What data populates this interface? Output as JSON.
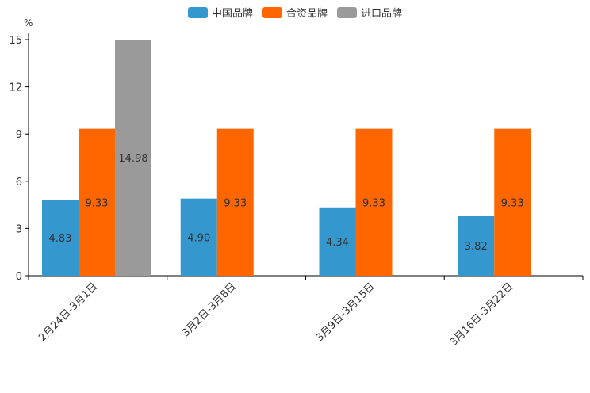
{
  "chart_data": {
    "type": "bar",
    "title": "",
    "xlabel": "",
    "ylabel": "%",
    "ylim": [
      0,
      15
    ],
    "yticks": [
      0,
      3,
      6,
      9,
      12,
      15
    ],
    "categories": [
      "2月24日-3月1日",
      "3月2日-3月8日",
      "3月9日-3月15日",
      "3月16日-3月22日"
    ],
    "series": [
      {
        "name": "中国品牌",
        "color": "#3498cf",
        "values": [
          4.83,
          4.9,
          4.34,
          3.82
        ],
        "labels": [
          "4.83",
          "4.90",
          "4.34",
          "3.82"
        ]
      },
      {
        "name": "合资品牌",
        "color": "#ff6600",
        "values": [
          9.33,
          9.33,
          9.33,
          9.33
        ],
        "labels": [
          "9.33",
          "9.33",
          "9.33",
          "9.33"
        ]
      },
      {
        "name": "进口品牌",
        "color": "#9a9a9a",
        "values": [
          14.98,
          null,
          null,
          null
        ],
        "labels": [
          "14.98",
          null,
          null,
          null
        ]
      }
    ],
    "legend_position": "top-center",
    "grid": false
  }
}
